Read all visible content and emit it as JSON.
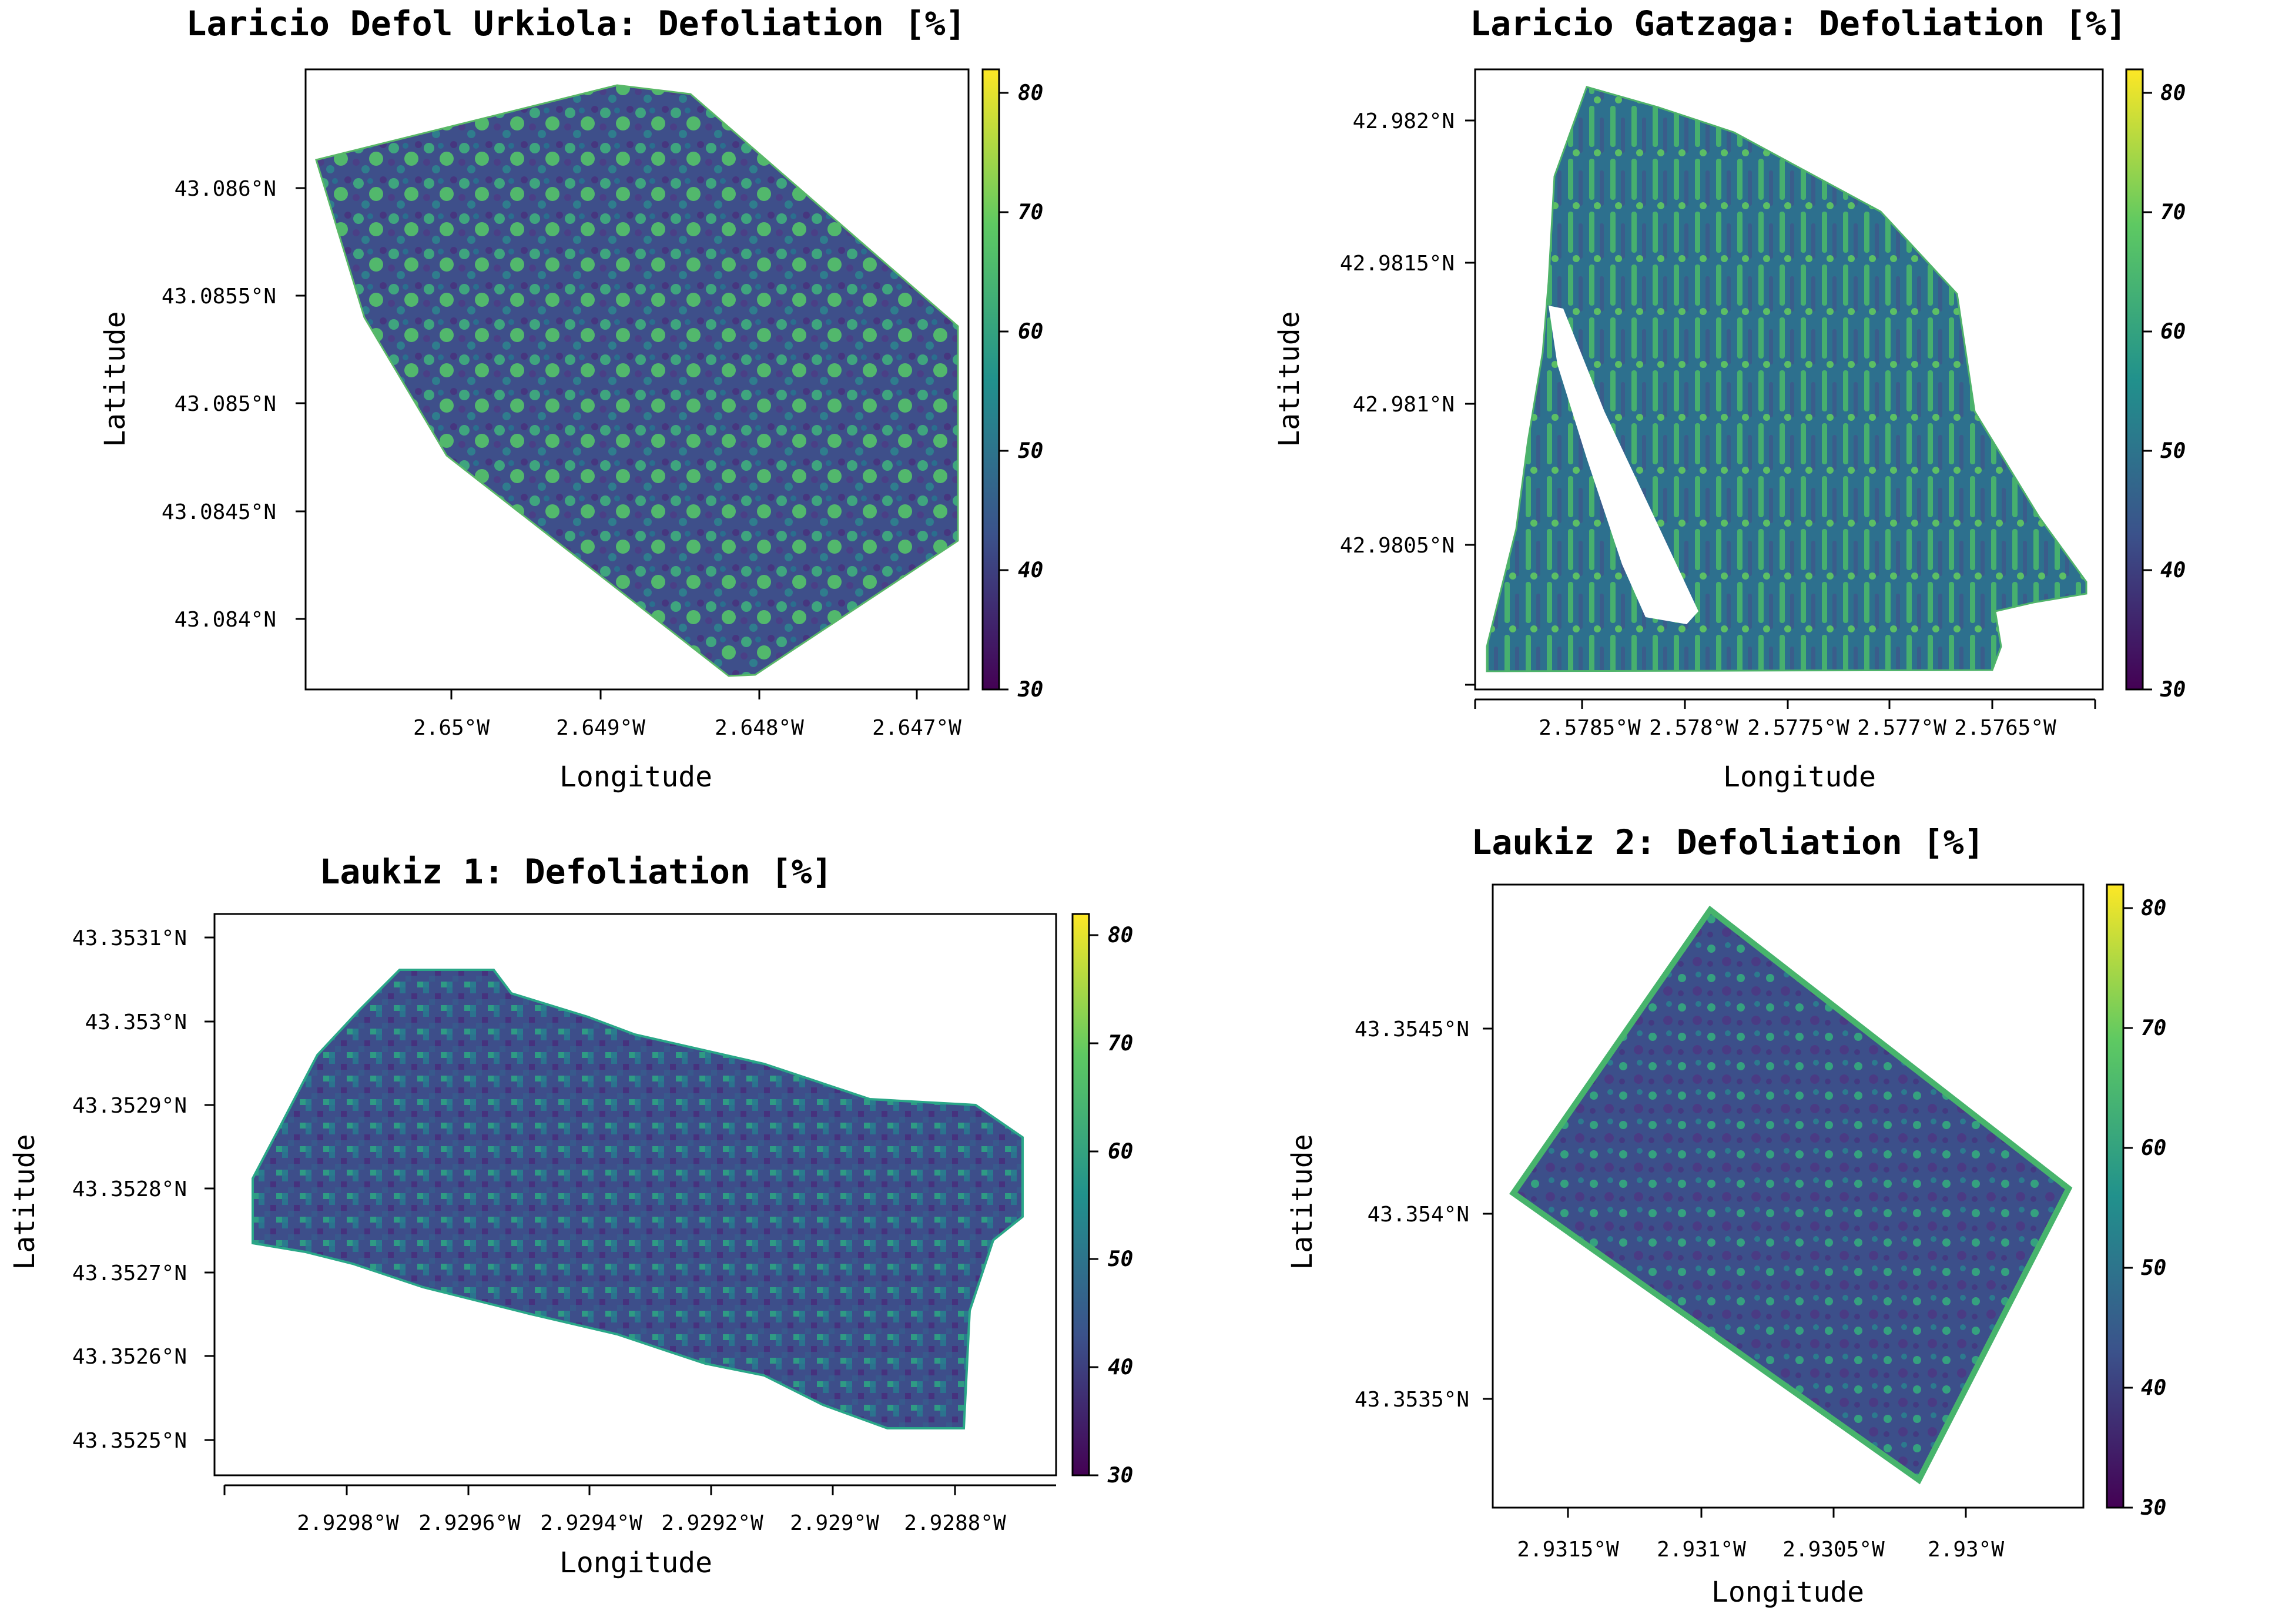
{
  "colormap": [
    "#440154",
    "#3b528b",
    "#21918c",
    "#5ec962",
    "#fde725"
  ],
  "colorbar_ticks": [
    "80",
    "70",
    "60",
    "50",
    "40",
    "30"
  ],
  "colorbar_range": [
    30,
    82
  ],
  "maps": [
    {
      "title": "Laricio Defol Urkiola: Defoliation [%]",
      "xlabel": "Longitude",
      "ylabel": "Latitude",
      "xticks": [
        "2.65°W",
        "2.649°W",
        "2.648°W",
        "2.647°W"
      ],
      "yticks": [
        "43.086°N",
        "43.0855°N",
        "43.085°N",
        "43.0845°N",
        "43.084°N"
      ]
    },
    {
      "title": "Laricio Gatzaga: Defoliation [%]",
      "xlabel": "Longitude",
      "ylabel": "Latitude",
      "xticks": [
        "2.5785°W",
        "2.578°W",
        "2.5775°W",
        "2.577°W",
        "2.5765°W"
      ],
      "yticks": [
        "42.982°N",
        "42.9815°N",
        "42.981°N",
        "42.9805°N"
      ]
    },
    {
      "title": "Laukiz 1: Defoliation [%]",
      "xlabel": "Longitude",
      "ylabel": "Latitude",
      "xticks": [
        "2.9298°W",
        "2.9296°W",
        "2.9294°W",
        "2.9292°W",
        "2.929°W",
        "2.9288°W"
      ],
      "yticks": [
        "43.3531°N",
        "43.353°N",
        "43.3529°N",
        "43.3528°N",
        "43.3527°N",
        "43.3526°N",
        "43.3525°N"
      ]
    },
    {
      "title": "Laukiz 2: Defoliation [%]",
      "xlabel": "Longitude",
      "ylabel": "Latitude",
      "xticks": [
        "2.9315°W",
        "2.931°W",
        "2.9305°W",
        "2.93°W"
      ],
      "yticks": [
        "43.3545°N",
        "43.354°N",
        "43.3535°N"
      ]
    }
  ]
}
